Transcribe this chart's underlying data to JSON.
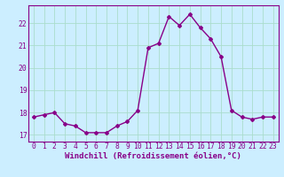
{
  "hours": [
    0,
    1,
    2,
    3,
    4,
    5,
    6,
    7,
    8,
    9,
    10,
    11,
    12,
    13,
    14,
    15,
    16,
    17,
    18,
    19,
    20,
    21,
    22,
    23
  ],
  "values": [
    17.8,
    17.9,
    18.0,
    17.5,
    17.4,
    17.1,
    17.1,
    17.1,
    17.4,
    17.6,
    18.1,
    20.9,
    21.1,
    22.3,
    21.9,
    22.4,
    21.8,
    21.3,
    20.5,
    18.1,
    17.8,
    17.7,
    17.8,
    17.8
  ],
  "line_color": "#880088",
  "marker": "D",
  "marker_size": 2.0,
  "bg_color": "#cceeff",
  "grid_color": "#aaddcc",
  "ylabel_ticks": [
    17,
    18,
    19,
    20,
    21,
    22
  ],
  "ylim": [
    16.7,
    22.8
  ],
  "xlim": [
    -0.5,
    23.5
  ],
  "xlabel": "Windchill (Refroidissement éolien,°C)",
  "xlabel_fontsize": 6.5,
  "tick_fontsize": 5.8,
  "line_width": 1.0
}
